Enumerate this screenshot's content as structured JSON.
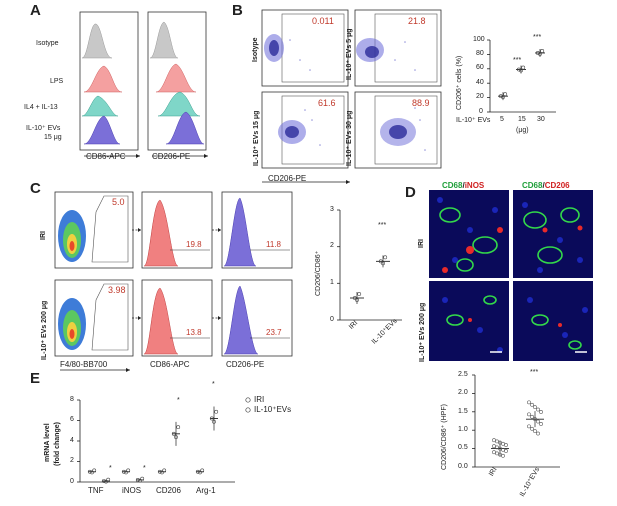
{
  "panels": {
    "A": "A",
    "B": "B",
    "C": "C",
    "D": "D",
    "E": "E"
  },
  "panelA": {
    "rows": [
      "Isotype",
      "LPS",
      "IL4 + IL-13",
      "IL-10⁺ EVs",
      "15 μg"
    ],
    "xlabels": [
      "CD86-APC",
      "CD206-PE"
    ],
    "colors": [
      "#b8b8b8",
      "#f08080",
      "#5bc4b4",
      "#6a5acd"
    ]
  },
  "panelB": {
    "plots": [
      {
        "label": "Isotype",
        "value": "0.011"
      },
      {
        "label": "IL-10⁺ EVs 5 μg",
        "value": "21.8"
      },
      {
        "label": "IL-10⁺ EVs 15 μg",
        "value": "61.6"
      },
      {
        "label": "IL-10⁺ EVs 30 μg",
        "value": "88.9"
      }
    ],
    "xlabel": "CD206-PE",
    "chart": {
      "ylabel": "CD206⁺ cells (%)",
      "yticks": [
        "0",
        "20",
        "40",
        "60",
        "80",
        "100"
      ],
      "xticks": [
        "5",
        "15",
        "30"
      ],
      "xtitle": "IL-10⁺ EVs",
      "xunit": "(μg)",
      "stars": [
        "***",
        "***"
      ]
    }
  },
  "panelC": {
    "rows": [
      "IRI",
      "IL-10⁺ EVs 200 μg"
    ],
    "gates": [
      "5.0",
      "3.98"
    ],
    "cd86": [
      "19.8",
      "13.8"
    ],
    "cd206": [
      "11.8",
      "23.7"
    ],
    "xlabels": [
      "F4/80-BB700",
      "CD86-APC",
      "CD206-PE"
    ],
    "chart": {
      "ylabel": "CD206/CD86⁺",
      "yticks": [
        "0",
        "1",
        "2",
        "3"
      ],
      "xticks": [
        "IRI",
        "IL-10⁺EVs"
      ],
      "stars": "***"
    }
  },
  "panelD": {
    "headers": [
      {
        "a": "CD68",
        "sep": "/",
        "b": "iNOS"
      },
      {
        "a": "CD68",
        "sep": "/",
        "b": "CD206"
      }
    ],
    "rows": [
      "IRI",
      "IL-10⁺ EVs 200 μg"
    ],
    "chart": {
      "ylabel": "CD206/CD86⁺ (HPF)",
      "yticks": [
        "0.0",
        "0.5",
        "1.0",
        "1.5",
        "2.0",
        "2.5"
      ],
      "xticks": [
        "IRI",
        "IL-10⁺EVs"
      ],
      "stars": "***"
    }
  },
  "panelE": {
    "ylabel": "mRNA level",
    "ylabel2": "(fold change)",
    "yticks": [
      "0",
      "2",
      "4",
      "6",
      "8"
    ],
    "categories": [
      "TNF",
      "iNOS",
      "CD206",
      "Arg-1"
    ],
    "legend": [
      "IRI",
      "IL-10⁺EVs"
    ],
    "stars": [
      "*",
      "*",
      "*",
      "*"
    ]
  },
  "chart_data": [
    {
      "type": "scatter",
      "ylabel": "CD206⁺ cells (%)",
      "categories": [
        "5",
        "15",
        "30"
      ],
      "ylim": [
        0,
        100
      ],
      "series": [
        {
          "values": [
            22,
            59,
            82
          ]
        }
      ]
    },
    {
      "type": "scatter",
      "ylabel": "CD206/CD86⁺",
      "categories": [
        "IRI",
        "IL-10⁺EVs"
      ],
      "ylim": [
        0,
        3
      ],
      "series": [
        {
          "values": [
            0.6,
            1.6
          ]
        }
      ]
    },
    {
      "type": "scatter",
      "ylabel": "CD206/CD86⁺ (HPF)",
      "categories": [
        "IRI",
        "IL-10⁺EVs"
      ],
      "ylim": [
        0,
        2.5
      ],
      "series": [
        {
          "values": [
            0.5,
            1.3
          ]
        }
      ]
    },
    {
      "type": "scatter",
      "ylabel": "mRNA level (fold change)",
      "categories": [
        "TNF",
        "iNOS",
        "CD206",
        "Arg-1"
      ],
      "ylim": [
        0,
        8
      ],
      "series": [
        {
          "name": "IRI",
          "values": [
            1.0,
            1.0,
            1.0,
            1.0
          ]
        },
        {
          "name": "IL-10⁺EVs",
          "values": [
            0.1,
            0.2,
            4.7,
            6.2
          ]
        }
      ]
    }
  ]
}
